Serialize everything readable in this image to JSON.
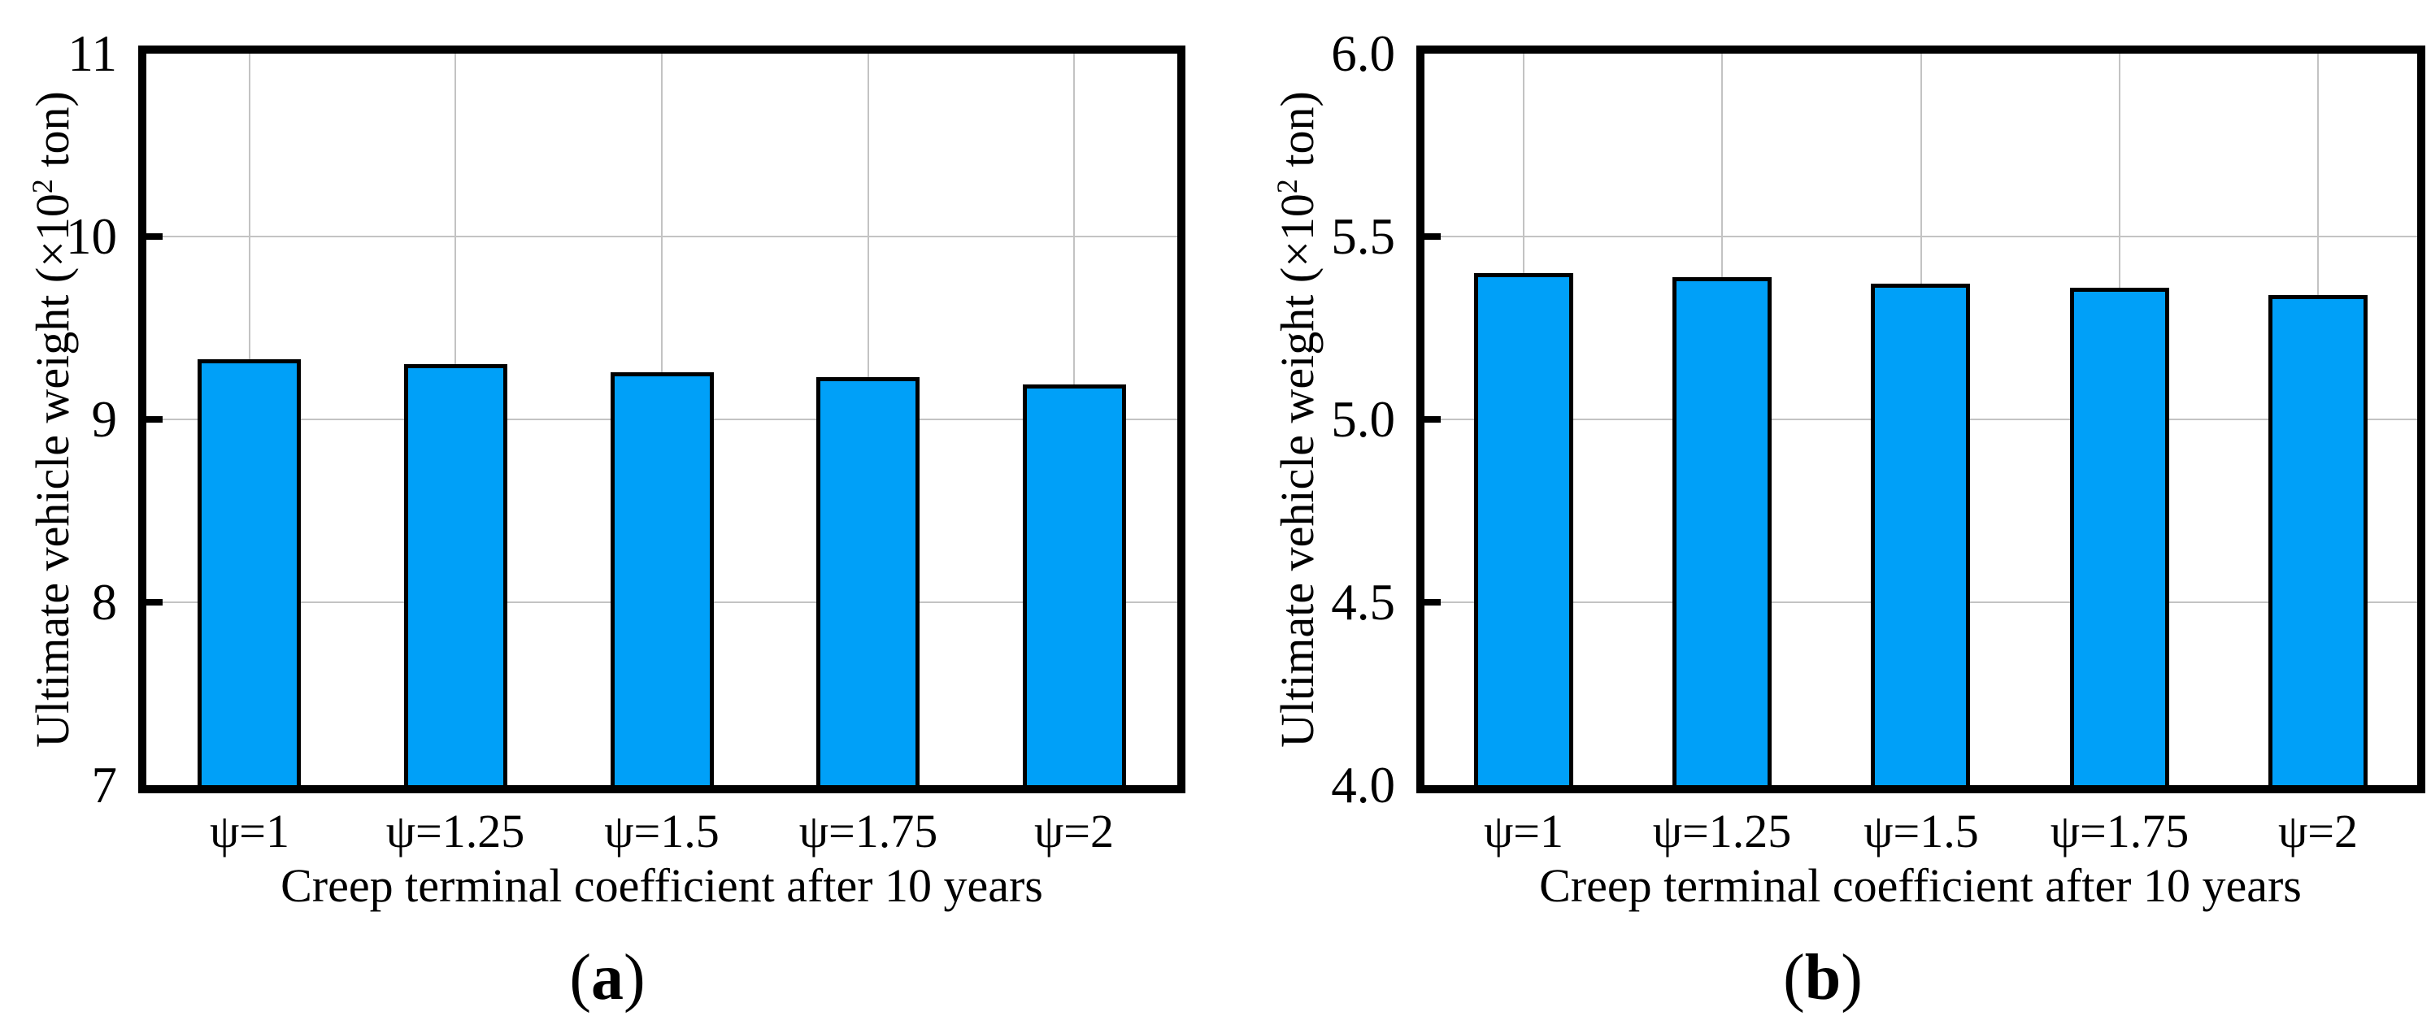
{
  "figure": {
    "colors": {
      "background": "#ffffff",
      "bar_fill": "#00A0F8",
      "bar_edge": "#000000",
      "grid": "#c3c3c3",
      "axis": "#000000",
      "text": "#000000"
    }
  },
  "chart_data": [
    {
      "type": "bar",
      "panel": "a",
      "caption": "(a)",
      "caption_parts": {
        "open": "(",
        "letter": "a",
        "close": ")"
      },
      "categories": [
        "ψ=1",
        "ψ=1.25",
        "ψ=1.5",
        "ψ=1.75",
        "ψ=2"
      ],
      "values": [
        9.33,
        9.3,
        9.26,
        9.23,
        9.19
      ],
      "xlabel": "Creep terminal coefficient after 10 years",
      "ylabel": "Ultimate vehicle weight (×10² ton)",
      "ylabel_parts": {
        "prefix": "Ultimate vehicle weight (×10",
        "sup": "2",
        "suffix": " ton)"
      },
      "ylim": [
        7,
        11
      ],
      "yticks": [
        {
          "value": 7,
          "label": "7"
        },
        {
          "value": 8,
          "label": "8"
        },
        {
          "value": 9,
          "label": "9"
        },
        {
          "value": 10,
          "label": "10"
        },
        {
          "value": 11,
          "label": "11"
        }
      ],
      "bar_width_fraction": 0.5,
      "grid": true,
      "legend": "none"
    },
    {
      "type": "bar",
      "panel": "b",
      "caption": "(b)",
      "caption_parts": {
        "open": "(",
        "letter": "b",
        "close": ")"
      },
      "categories": [
        "ψ=1",
        "ψ=1.25",
        "ψ=1.5",
        "ψ=1.75",
        "ψ=2"
      ],
      "values": [
        5.4,
        5.39,
        5.37,
        5.36,
        5.34
      ],
      "xlabel": "Creep terminal coefficient after 10 years",
      "ylabel": "Ultimate vehicle weight (×10² ton)",
      "ylabel_parts": {
        "prefix": "Ultimate vehicle weight (×10",
        "sup": "2",
        "suffix": " ton)"
      },
      "ylim": [
        4.0,
        6.0
      ],
      "yticks": [
        {
          "value": 4.0,
          "label": "4.0"
        },
        {
          "value": 4.5,
          "label": "4.5"
        },
        {
          "value": 5.0,
          "label": "5.0"
        },
        {
          "value": 5.5,
          "label": "5.5"
        },
        {
          "value": 6.0,
          "label": "6.0"
        }
      ],
      "bar_width_fraction": 0.5,
      "grid": true,
      "legend": "none"
    }
  ]
}
